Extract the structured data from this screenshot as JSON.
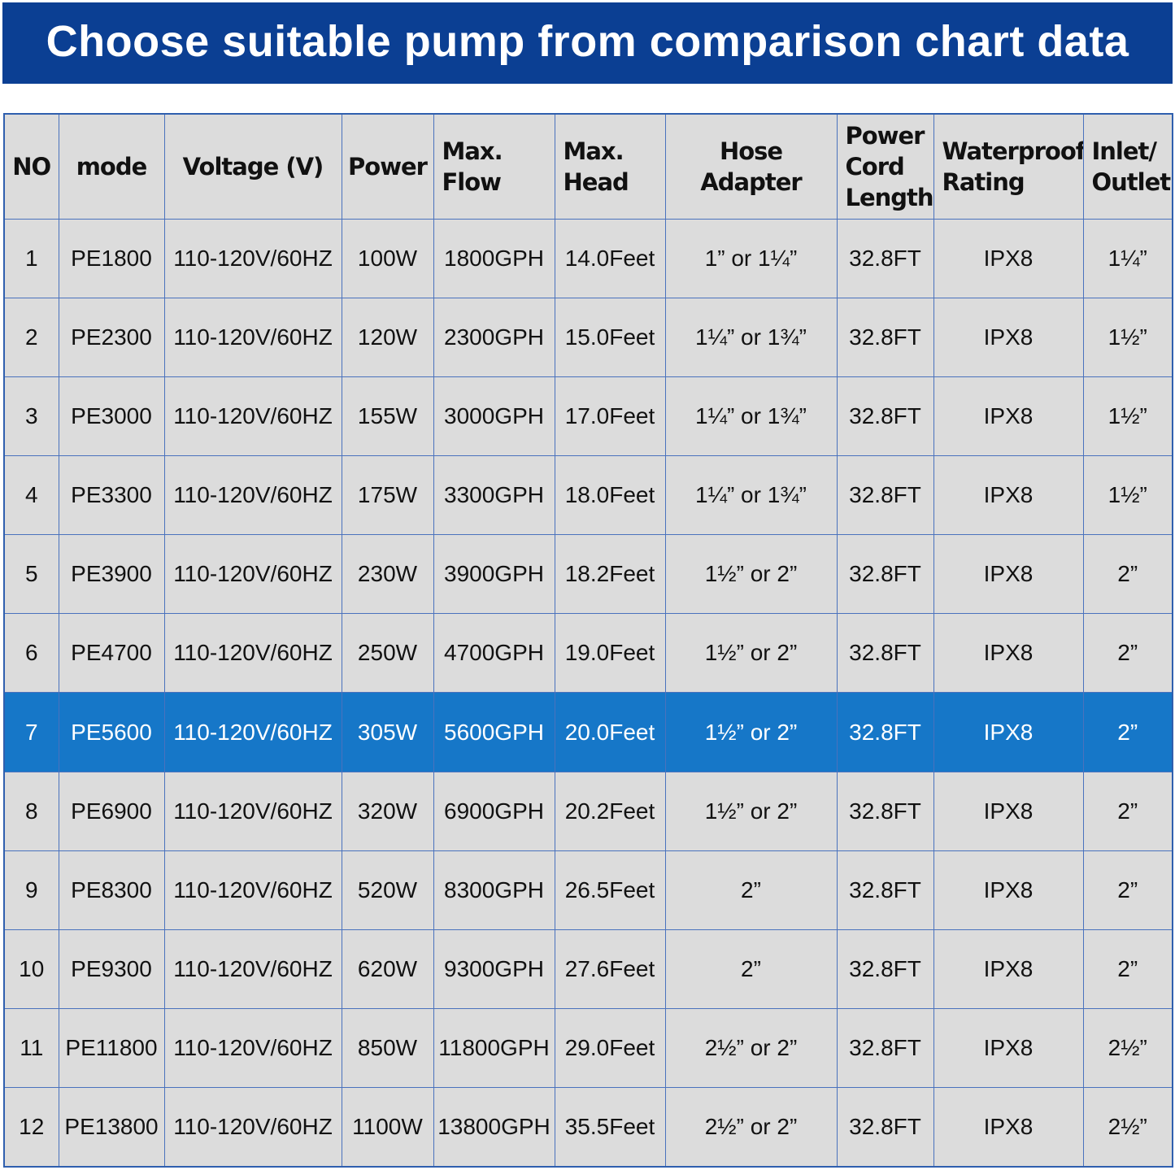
{
  "header": {
    "title": "Choose suitable pump from comparison chart data"
  },
  "table": {
    "headers": [
      "NO",
      "mode",
      "Voltage (V)",
      "Power",
      "Max. Flow",
      "Max. Head",
      "Hose Adapter",
      "Power Cord Length",
      "Waterproof Rating",
      "Inlet/ Outlet"
    ],
    "rows": [
      [
        "1",
        "PE1800",
        "110-120V/60HZ",
        "100W",
        "1800GPH",
        "14.0Feet",
        "1” or 1¼”",
        "32.8FT",
        "IPX8",
        "1¼”"
      ],
      [
        "2",
        "PE2300",
        "110-120V/60HZ",
        "120W",
        "2300GPH",
        "15.0Feet",
        "1¼” or 1¾”",
        "32.8FT",
        "IPX8",
        "1½”"
      ],
      [
        "3",
        "PE3000",
        "110-120V/60HZ",
        "155W",
        "3000GPH",
        "17.0Feet",
        "1¼” or 1¾”",
        "32.8FT",
        "IPX8",
        "1½”"
      ],
      [
        "4",
        "PE3300",
        "110-120V/60HZ",
        "175W",
        "3300GPH",
        "18.0Feet",
        "1¼” or 1¾”",
        "32.8FT",
        "IPX8",
        "1½”"
      ],
      [
        "5",
        "PE3900",
        "110-120V/60HZ",
        "230W",
        "3900GPH",
        "18.2Feet",
        "1½” or 2”",
        "32.8FT",
        "IPX8",
        "2”"
      ],
      [
        "6",
        "PE4700",
        "110-120V/60HZ",
        "250W",
        "4700GPH",
        "19.0Feet",
        "1½” or 2”",
        "32.8FT",
        "IPX8",
        "2”"
      ],
      [
        "7",
        "PE5600",
        "110-120V/60HZ",
        "305W",
        "5600GPH",
        "20.0Feet",
        "1½” or 2”",
        "32.8FT",
        "IPX8",
        "2”"
      ],
      [
        "8",
        "PE6900",
        "110-120V/60HZ",
        "320W",
        "6900GPH",
        "20.2Feet",
        "1½” or 2”",
        "32.8FT",
        "IPX8",
        "2”"
      ],
      [
        "9",
        "PE8300",
        "110-120V/60HZ",
        "520W",
        "8300GPH",
        "26.5Feet",
        "2”",
        "32.8FT",
        "IPX8",
        "2”"
      ],
      [
        "10",
        "PE9300",
        "110-120V/60HZ",
        "620W",
        "9300GPH",
        "27.6Feet",
        "2”",
        "32.8FT",
        "IPX8",
        "2”"
      ],
      [
        "11",
        "PE11800",
        "110-120V/60HZ",
        "850W",
        "11800GPH",
        "29.0Feet",
        "2½” or 2”",
        "32.8FT",
        "IPX8",
        "2½”"
      ],
      [
        "12",
        "PE13800",
        "110-120V/60HZ",
        "1100W",
        "13800GPH",
        "35.5Feet",
        "2½” or 2”",
        "32.8FT",
        "IPX8",
        "2½”"
      ]
    ]
  }
}
